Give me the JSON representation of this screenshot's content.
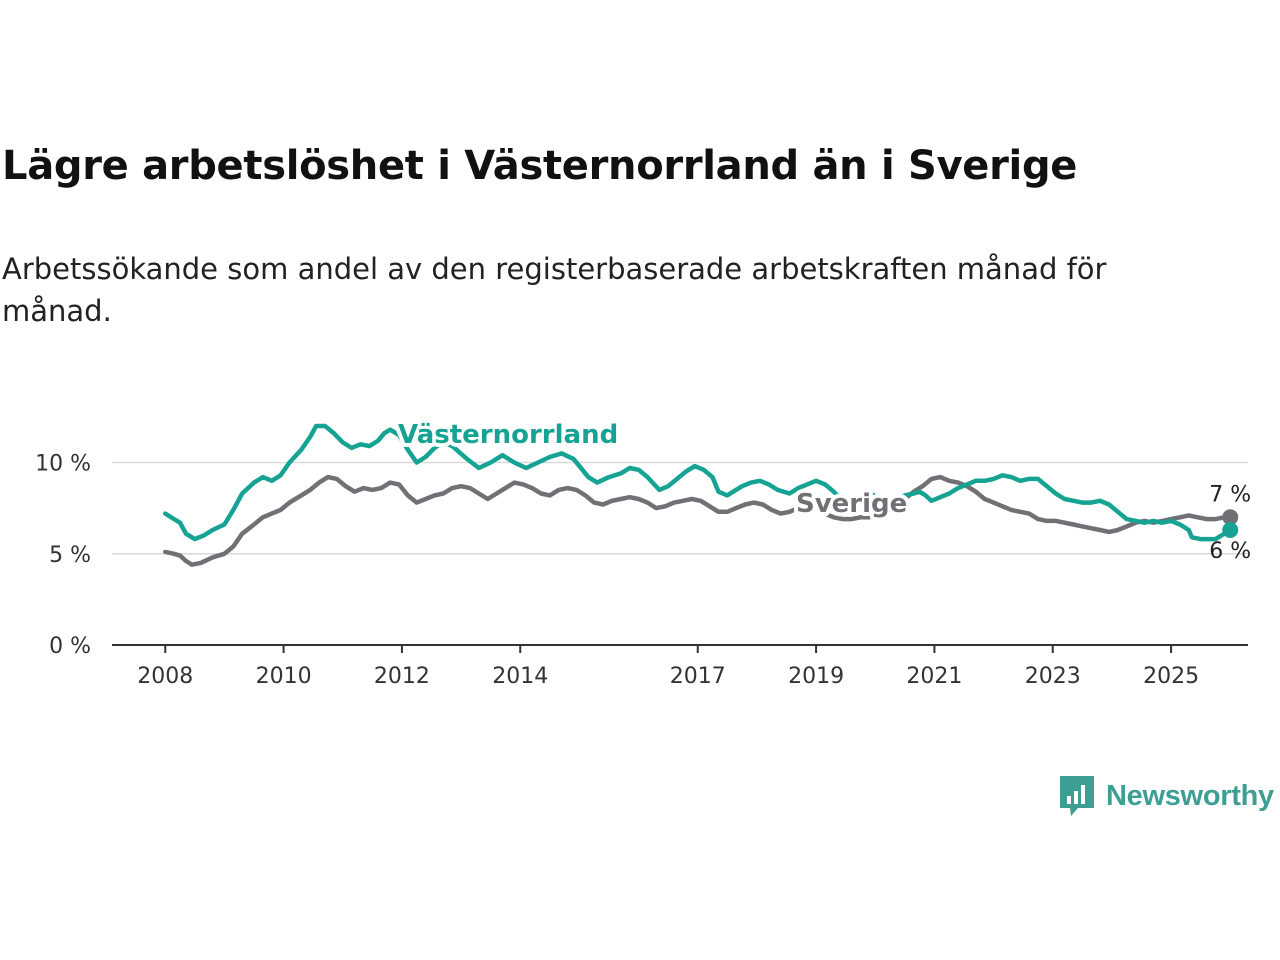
{
  "title": "Lägre arbetslöshet i Västernorrland än i Sverige",
  "subtitle": "Arbetssökande som andel av den registerbaserade arbetskraften månad för månad.",
  "brand": {
    "name": "Newsworthy",
    "icon": "newsworthy-bar-chart-logo-icon",
    "color": "#3f9e94"
  },
  "chart_data": {
    "type": "line",
    "x_unit": "year (decimal)",
    "y_unit": "%",
    "ylim": [
      0,
      12
    ],
    "xlim": [
      2007.1,
      2026.3
    ],
    "grid": true,
    "y_ticks": [
      {
        "value": 0,
        "label": "0 %"
      },
      {
        "value": 5,
        "label": "5 %"
      },
      {
        "value": 10,
        "label": "10 %"
      }
    ],
    "x_ticks": [
      {
        "value": 2008,
        "label": "2008"
      },
      {
        "value": 2010,
        "label": "2010"
      },
      {
        "value": 2012,
        "label": "2012"
      },
      {
        "value": 2014,
        "label": "2014"
      },
      {
        "value": 2017,
        "label": "2017"
      },
      {
        "value": 2019,
        "label": "2019"
      },
      {
        "value": 2021,
        "label": "2021"
      },
      {
        "value": 2023,
        "label": "2023"
      },
      {
        "value": 2025,
        "label": "2025"
      }
    ],
    "series": [
      {
        "name": "Västernorrland",
        "color": "#16a394",
        "end_label": "6 %",
        "points": [
          [
            2008.0,
            7.2
          ],
          [
            2008.15,
            6.9
          ],
          [
            2008.25,
            6.7
          ],
          [
            2008.35,
            6.1
          ],
          [
            2008.5,
            5.8
          ],
          [
            2008.65,
            6.0
          ],
          [
            2008.8,
            6.3
          ],
          [
            2009.0,
            6.6
          ],
          [
            2009.15,
            7.4
          ],
          [
            2009.3,
            8.3
          ],
          [
            2009.5,
            8.9
          ],
          [
            2009.65,
            9.2
          ],
          [
            2009.8,
            9.0
          ],
          [
            2009.95,
            9.3
          ],
          [
            2010.1,
            10.0
          ],
          [
            2010.3,
            10.7
          ],
          [
            2010.45,
            11.4
          ],
          [
            2010.55,
            12.0
          ],
          [
            2010.7,
            12.0
          ],
          [
            2010.85,
            11.6
          ],
          [
            2011.0,
            11.1
          ],
          [
            2011.15,
            10.8
          ],
          [
            2011.3,
            11.0
          ],
          [
            2011.45,
            10.9
          ],
          [
            2011.6,
            11.2
          ],
          [
            2011.7,
            11.6
          ],
          [
            2011.8,
            11.8
          ],
          [
            2011.95,
            11.5
          ],
          [
            2012.1,
            10.7
          ],
          [
            2012.25,
            10.0
          ],
          [
            2012.4,
            10.3
          ],
          [
            2012.55,
            10.8
          ],
          [
            2012.7,
            11.1
          ],
          [
            2012.85,
            10.9
          ],
          [
            2013.1,
            10.2
          ],
          [
            2013.3,
            9.7
          ],
          [
            2013.5,
            10.0
          ],
          [
            2013.7,
            10.4
          ],
          [
            2013.9,
            10.0
          ],
          [
            2014.1,
            9.7
          ],
          [
            2014.3,
            10.0
          ],
          [
            2014.5,
            10.3
          ],
          [
            2014.7,
            10.5
          ],
          [
            2014.9,
            10.2
          ],
          [
            2015.0,
            9.8
          ],
          [
            2015.15,
            9.2
          ],
          [
            2015.3,
            8.9
          ],
          [
            2015.5,
            9.2
          ],
          [
            2015.7,
            9.4
          ],
          [
            2015.85,
            9.7
          ],
          [
            2016.0,
            9.6
          ],
          [
            2016.15,
            9.2
          ],
          [
            2016.35,
            8.5
          ],
          [
            2016.5,
            8.7
          ],
          [
            2016.65,
            9.1
          ],
          [
            2016.8,
            9.5
          ],
          [
            2016.95,
            9.8
          ],
          [
            2017.1,
            9.6
          ],
          [
            2017.25,
            9.2
          ],
          [
            2017.35,
            8.4
          ],
          [
            2017.5,
            8.2
          ],
          [
            2017.6,
            8.4
          ],
          [
            2017.75,
            8.7
          ],
          [
            2017.9,
            8.9
          ],
          [
            2018.05,
            9.0
          ],
          [
            2018.2,
            8.8
          ],
          [
            2018.35,
            8.5
          ],
          [
            2018.55,
            8.3
          ],
          [
            2018.7,
            8.6
          ],
          [
            2018.85,
            8.8
          ],
          [
            2019.0,
            9.0
          ],
          [
            2019.15,
            8.8
          ],
          [
            2019.3,
            8.4
          ],
          [
            2019.45,
            7.8
          ],
          [
            2019.6,
            7.7
          ],
          [
            2019.75,
            8.0
          ],
          [
            2019.9,
            8.3
          ],
          [
            2020.05,
            8.1
          ],
          [
            2020.2,
            7.9
          ],
          [
            2020.35,
            8.0
          ],
          [
            2020.5,
            8.2
          ],
          [
            2020.65,
            8.3
          ],
          [
            2020.75,
            8.4
          ],
          [
            2020.85,
            8.2
          ],
          [
            2020.95,
            7.9
          ],
          [
            2021.1,
            8.1
          ],
          [
            2021.25,
            8.3
          ],
          [
            2021.4,
            8.6
          ],
          [
            2021.55,
            8.8
          ],
          [
            2021.7,
            9.0
          ],
          [
            2021.85,
            9.0
          ],
          [
            2022.0,
            9.1
          ],
          [
            2022.15,
            9.3
          ],
          [
            2022.3,
            9.2
          ],
          [
            2022.45,
            9.0
          ],
          [
            2022.6,
            9.1
          ],
          [
            2022.75,
            9.1
          ],
          [
            2022.9,
            8.7
          ],
          [
            2023.05,
            8.3
          ],
          [
            2023.2,
            8.0
          ],
          [
            2023.35,
            7.9
          ],
          [
            2023.5,
            7.8
          ],
          [
            2023.65,
            7.8
          ],
          [
            2023.8,
            7.9
          ],
          [
            2023.95,
            7.7
          ],
          [
            2024.1,
            7.3
          ],
          [
            2024.25,
            6.9
          ],
          [
            2024.4,
            6.8
          ],
          [
            2024.55,
            6.7
          ],
          [
            2024.7,
            6.8
          ],
          [
            2024.85,
            6.7
          ],
          [
            2025.0,
            6.8
          ],
          [
            2025.15,
            6.6
          ],
          [
            2025.3,
            6.3
          ],
          [
            2025.35,
            5.9
          ],
          [
            2025.5,
            5.8
          ],
          [
            2025.6,
            5.8
          ],
          [
            2025.75,
            5.8
          ],
          [
            2025.85,
            6.0
          ],
          [
            2026.0,
            6.3
          ]
        ]
      },
      {
        "name": "Sverige",
        "color": "#717075",
        "end_label": "7 %",
        "points": [
          [
            2008.0,
            5.1
          ],
          [
            2008.15,
            5.0
          ],
          [
            2008.25,
            4.9
          ],
          [
            2008.35,
            4.6
          ],
          [
            2008.45,
            4.4
          ],
          [
            2008.6,
            4.5
          ],
          [
            2008.8,
            4.8
          ],
          [
            2009.0,
            5.0
          ],
          [
            2009.15,
            5.4
          ],
          [
            2009.3,
            6.1
          ],
          [
            2009.5,
            6.6
          ],
          [
            2009.65,
            7.0
          ],
          [
            2009.8,
            7.2
          ],
          [
            2009.95,
            7.4
          ],
          [
            2010.1,
            7.8
          ],
          [
            2010.3,
            8.2
          ],
          [
            2010.45,
            8.5
          ],
          [
            2010.6,
            8.9
          ],
          [
            2010.75,
            9.2
          ],
          [
            2010.9,
            9.1
          ],
          [
            2011.05,
            8.7
          ],
          [
            2011.2,
            8.4
          ],
          [
            2011.35,
            8.6
          ],
          [
            2011.5,
            8.5
          ],
          [
            2011.65,
            8.6
          ],
          [
            2011.8,
            8.9
          ],
          [
            2011.95,
            8.8
          ],
          [
            2012.1,
            8.2
          ],
          [
            2012.25,
            7.8
          ],
          [
            2012.4,
            8.0
          ],
          [
            2012.55,
            8.2
          ],
          [
            2012.7,
            8.3
          ],
          [
            2012.85,
            8.6
          ],
          [
            2013.0,
            8.7
          ],
          [
            2013.15,
            8.6
          ],
          [
            2013.3,
            8.3
          ],
          [
            2013.45,
            8.0
          ],
          [
            2013.6,
            8.3
          ],
          [
            2013.75,
            8.6
          ],
          [
            2013.9,
            8.9
          ],
          [
            2014.05,
            8.8
          ],
          [
            2014.2,
            8.6
          ],
          [
            2014.35,
            8.3
          ],
          [
            2014.5,
            8.2
          ],
          [
            2014.65,
            8.5
          ],
          [
            2014.8,
            8.6
          ],
          [
            2014.95,
            8.5
          ],
          [
            2015.1,
            8.2
          ],
          [
            2015.25,
            7.8
          ],
          [
            2015.4,
            7.7
          ],
          [
            2015.55,
            7.9
          ],
          [
            2015.7,
            8.0
          ],
          [
            2015.85,
            8.1
          ],
          [
            2016.0,
            8.0
          ],
          [
            2016.15,
            7.8
          ],
          [
            2016.3,
            7.5
          ],
          [
            2016.45,
            7.6
          ],
          [
            2016.6,
            7.8
          ],
          [
            2016.75,
            7.9
          ],
          [
            2016.9,
            8.0
          ],
          [
            2017.05,
            7.9
          ],
          [
            2017.2,
            7.6
          ],
          [
            2017.35,
            7.3
          ],
          [
            2017.5,
            7.3
          ],
          [
            2017.65,
            7.5
          ],
          [
            2017.8,
            7.7
          ],
          [
            2017.95,
            7.8
          ],
          [
            2018.1,
            7.7
          ],
          [
            2018.25,
            7.4
          ],
          [
            2018.4,
            7.2
          ],
          [
            2018.55,
            7.3
          ],
          [
            2018.7,
            7.5
          ],
          [
            2018.85,
            7.6
          ],
          [
            2019.0,
            7.5
          ],
          [
            2019.15,
            7.2
          ],
          [
            2019.3,
            7.0
          ],
          [
            2019.45,
            6.9
          ],
          [
            2019.6,
            6.9
          ],
          [
            2019.75,
            7.0
          ],
          [
            2019.9,
            7.0
          ],
          [
            2020.05,
            7.1
          ],
          [
            2020.2,
            7.3
          ],
          [
            2020.35,
            7.6
          ],
          [
            2020.5,
            8.0
          ],
          [
            2020.65,
            8.4
          ],
          [
            2020.8,
            8.7
          ],
          [
            2020.95,
            9.1
          ],
          [
            2021.1,
            9.2
          ],
          [
            2021.25,
            9.0
          ],
          [
            2021.4,
            8.9
          ],
          [
            2021.55,
            8.7
          ],
          [
            2021.7,
            8.4
          ],
          [
            2021.85,
            8.0
          ],
          [
            2022.0,
            7.8
          ],
          [
            2022.15,
            7.6
          ],
          [
            2022.3,
            7.4
          ],
          [
            2022.45,
            7.3
          ],
          [
            2022.6,
            7.2
          ],
          [
            2022.75,
            6.9
          ],
          [
            2022.9,
            6.8
          ],
          [
            2023.05,
            6.8
          ],
          [
            2023.2,
            6.7
          ],
          [
            2023.35,
            6.6
          ],
          [
            2023.5,
            6.5
          ],
          [
            2023.65,
            6.4
          ],
          [
            2023.8,
            6.3
          ],
          [
            2023.95,
            6.2
          ],
          [
            2024.1,
            6.3
          ],
          [
            2024.25,
            6.5
          ],
          [
            2024.4,
            6.7
          ],
          [
            2024.55,
            6.8
          ],
          [
            2024.7,
            6.7
          ],
          [
            2024.85,
            6.8
          ],
          [
            2025.0,
            6.9
          ],
          [
            2025.15,
            7.0
          ],
          [
            2025.3,
            7.1
          ],
          [
            2025.45,
            7.0
          ],
          [
            2025.6,
            6.9
          ],
          [
            2025.75,
            6.9
          ],
          [
            2025.9,
            7.0
          ],
          [
            2026.0,
            7.0
          ]
        ]
      }
    ]
  }
}
